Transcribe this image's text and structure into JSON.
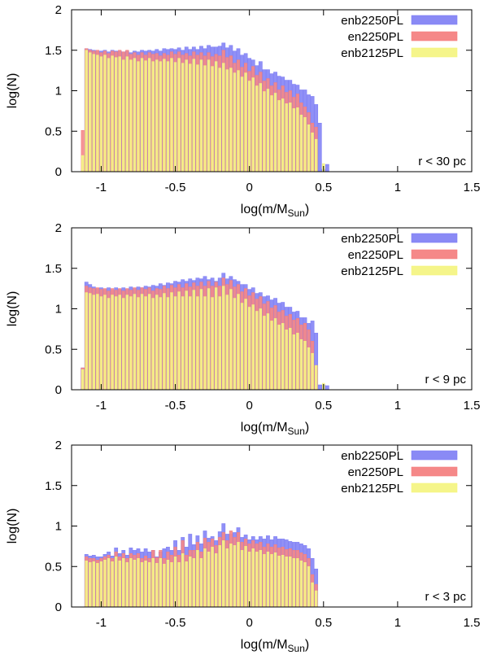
{
  "chart_data": [
    {
      "type": "bar",
      "annotation": "r < 30 pc",
      "xlabel": {
        "main": "log(m/M",
        "sub": "Sun",
        "close": ")"
      },
      "ylabel": "log(N)",
      "xlim": [
        -1.2,
        1.5
      ],
      "ylim": [
        0,
        2
      ],
      "xticks": [
        "-1",
        "-0.5",
        "0",
        "0.5",
        "1",
        "1.5"
      ],
      "yticks": [
        "0",
        "0.5",
        "1",
        "1.5",
        "2"
      ],
      "grid": false,
      "legend_position": "top-right",
      "x": [
        -1.125,
        -1.1,
        -1.075,
        -1.05,
        -1.025,
        -1.0,
        -0.975,
        -0.95,
        -0.925,
        -0.9,
        -0.875,
        -0.85,
        -0.825,
        -0.8,
        -0.775,
        -0.75,
        -0.725,
        -0.7,
        -0.675,
        -0.65,
        -0.625,
        -0.6,
        -0.575,
        -0.55,
        -0.525,
        -0.5,
        -0.475,
        -0.45,
        -0.425,
        -0.4,
        -0.375,
        -0.35,
        -0.325,
        -0.3,
        -0.275,
        -0.25,
        -0.225,
        -0.2,
        -0.175,
        -0.15,
        -0.125,
        -0.1,
        -0.075,
        -0.05,
        -0.025,
        0.0,
        0.025,
        0.05,
        0.075,
        0.1,
        0.125,
        0.15,
        0.175,
        0.2,
        0.225,
        0.25,
        0.275,
        0.3,
        0.325,
        0.35,
        0.375,
        0.4,
        0.425,
        0.45,
        0.475,
        0.5,
        0.525
      ],
      "series": [
        {
          "name": "enb2250PL",
          "color": "#8a8af5",
          "values": [
            0,
            1.52,
            1.51,
            1.5,
            1.49,
            1.49,
            1.5,
            1.48,
            1.5,
            1.49,
            1.49,
            1.48,
            1.49,
            1.47,
            1.49,
            1.48,
            1.5,
            1.49,
            1.5,
            1.49,
            1.51,
            1.49,
            1.52,
            1.51,
            1.52,
            1.51,
            1.53,
            1.5,
            1.54,
            1.51,
            1.54,
            1.51,
            1.55,
            1.52,
            1.56,
            1.54,
            1.54,
            1.55,
            1.59,
            1.53,
            1.56,
            1.49,
            1.52,
            1.44,
            1.46,
            1.4,
            1.38,
            1.31,
            1.36,
            1.26,
            1.26,
            1.21,
            1.23,
            1.18,
            1.17,
            1.13,
            1.13,
            1.08,
            1.07,
            1.01,
            1.01,
            0.95,
            0.93,
            0.83,
            0.6,
            0.03,
            0.09
          ]
        },
        {
          "name": "en2250PL",
          "color": "#f58888",
          "values": [
            0.51,
            1.52,
            1.5,
            1.49,
            1.5,
            1.47,
            1.49,
            1.46,
            1.49,
            1.48,
            1.5,
            1.48,
            1.5,
            1.45,
            1.47,
            1.44,
            1.47,
            1.44,
            1.47,
            1.45,
            1.46,
            1.43,
            1.46,
            1.44,
            1.48,
            1.45,
            1.48,
            1.44,
            1.46,
            1.43,
            1.48,
            1.44,
            1.47,
            1.43,
            1.47,
            1.42,
            1.45,
            1.43,
            1.5,
            1.41,
            1.43,
            1.34,
            1.38,
            1.29,
            1.34,
            1.24,
            1.3,
            1.19,
            1.23,
            1.12,
            1.15,
            1.06,
            1.1,
            1.01,
            1.06,
            0.98,
            1.0,
            0.92,
            0.96,
            0.85,
            0.8,
            0.73,
            0.6,
            0.55,
            0,
            0,
            0
          ]
        },
        {
          "name": "enb2125PL",
          "color": "#f5f58a",
          "values": [
            0.2,
            1.5,
            1.47,
            1.45,
            1.44,
            1.42,
            1.44,
            1.4,
            1.43,
            1.41,
            1.42,
            1.38,
            1.42,
            1.38,
            1.4,
            1.36,
            1.4,
            1.37,
            1.4,
            1.36,
            1.38,
            1.36,
            1.39,
            1.36,
            1.4,
            1.35,
            1.4,
            1.34,
            1.38,
            1.33,
            1.39,
            1.32,
            1.38,
            1.31,
            1.38,
            1.3,
            1.36,
            1.28,
            1.34,
            1.26,
            1.28,
            1.22,
            1.25,
            1.17,
            1.22,
            1.12,
            1.16,
            1.06,
            1.09,
            0.99,
            1.02,
            0.94,
            0.97,
            0.88,
            0.9,
            0.84,
            0.85,
            0.78,
            0.79,
            0.7,
            0.67,
            0.58,
            0.48,
            0.4,
            0,
            0.1,
            0
          ]
        }
      ]
    },
    {
      "type": "bar",
      "annotation": "r < 9 pc",
      "xlabel": {
        "main": "log(m/M",
        "sub": "Sun",
        "close": ")"
      },
      "ylabel": "log(N)",
      "xlim": [
        -1.2,
        1.5
      ],
      "ylim": [
        0,
        2
      ],
      "xticks": [
        "-1",
        "-0.5",
        "0",
        "0.5",
        "1",
        "1.5"
      ],
      "yticks": [
        "0",
        "0.5",
        "1",
        "1.5",
        "2"
      ],
      "grid": false,
      "legend_position": "top-right",
      "x": [
        -1.125,
        -1.1,
        -1.075,
        -1.05,
        -1.025,
        -1.0,
        -0.975,
        -0.95,
        -0.925,
        -0.9,
        -0.875,
        -0.85,
        -0.825,
        -0.8,
        -0.775,
        -0.75,
        -0.725,
        -0.7,
        -0.675,
        -0.65,
        -0.625,
        -0.6,
        -0.575,
        -0.55,
        -0.525,
        -0.5,
        -0.475,
        -0.45,
        -0.425,
        -0.4,
        -0.375,
        -0.35,
        -0.325,
        -0.3,
        -0.275,
        -0.25,
        -0.225,
        -0.2,
        -0.175,
        -0.15,
        -0.125,
        -0.1,
        -0.075,
        -0.05,
        -0.025,
        0.0,
        0.025,
        0.05,
        0.075,
        0.1,
        0.125,
        0.15,
        0.175,
        0.2,
        0.225,
        0.25,
        0.275,
        0.3,
        0.325,
        0.35,
        0.375,
        0.4,
        0.425,
        0.45,
        0.475,
        0.5,
        0.525
      ],
      "series": [
        {
          "name": "enb2250PL",
          "color": "#8a8af5",
          "values": [
            0.27,
            1.33,
            1.3,
            1.27,
            1.25,
            1.26,
            1.24,
            1.26,
            1.23,
            1.26,
            1.24,
            1.26,
            1.24,
            1.27,
            1.25,
            1.27,
            1.26,
            1.28,
            1.27,
            1.29,
            1.28,
            1.31,
            1.29,
            1.32,
            1.31,
            1.34,
            1.33,
            1.36,
            1.34,
            1.37,
            1.35,
            1.38,
            1.37,
            1.4,
            1.36,
            1.38,
            1.34,
            1.38,
            1.44,
            1.37,
            1.4,
            1.36,
            1.34,
            1.3,
            1.3,
            1.24,
            1.26,
            1.19,
            1.2,
            1.15,
            1.16,
            1.11,
            1.13,
            1.07,
            1.08,
            1.02,
            1.02,
            0.96,
            0.97,
            0.89,
            0.89,
            0.82,
            0.85,
            0.7,
            0.06,
            0.06,
            0.05
          ]
        },
        {
          "name": "en2250PL",
          "color": "#f58888",
          "values": [
            0.27,
            1.28,
            1.26,
            1.25,
            1.26,
            1.24,
            1.25,
            1.22,
            1.25,
            1.23,
            1.25,
            1.22,
            1.25,
            1.23,
            1.26,
            1.23,
            1.26,
            1.24,
            1.26,
            1.22,
            1.25,
            1.24,
            1.28,
            1.25,
            1.29,
            1.26,
            1.3,
            1.26,
            1.31,
            1.27,
            1.32,
            1.28,
            1.33,
            1.28,
            1.34,
            1.28,
            1.33,
            1.28,
            1.38,
            1.3,
            1.35,
            1.27,
            1.3,
            1.21,
            1.25,
            1.16,
            1.2,
            1.12,
            1.15,
            1.06,
            1.09,
            1.01,
            1.04,
            0.96,
            0.98,
            0.91,
            0.93,
            0.86,
            0.88,
            0.8,
            0.82,
            0.74,
            0.6,
            0.3,
            0,
            0,
            0
          ]
        },
        {
          "name": "enb2125PL",
          "color": "#f5f58a",
          "values": [
            0.25,
            1.2,
            1.19,
            1.17,
            1.18,
            1.15,
            1.17,
            1.13,
            1.17,
            1.15,
            1.17,
            1.13,
            1.17,
            1.15,
            1.18,
            1.14,
            1.18,
            1.15,
            1.18,
            1.13,
            1.17,
            1.14,
            1.19,
            1.14,
            1.2,
            1.15,
            1.21,
            1.15,
            1.22,
            1.15,
            1.23,
            1.15,
            1.24,
            1.15,
            1.25,
            1.14,
            1.26,
            1.15,
            1.28,
            1.17,
            1.24,
            1.13,
            1.18,
            1.07,
            1.12,
            1.02,
            1.05,
            0.97,
            1.0,
            0.91,
            0.94,
            0.85,
            0.88,
            0.8,
            0.82,
            0.74,
            0.76,
            0.68,
            0.7,
            0.62,
            0.6,
            0.52,
            0.45,
            0.3,
            0,
            0.08,
            0
          ]
        }
      ]
    },
    {
      "type": "bar",
      "annotation": "r < 3 pc",
      "xlabel": {
        "main": "log(m/M",
        "sub": "Sun",
        "close": ")"
      },
      "ylabel": "log(N)",
      "xlim": [
        -1.2,
        1.5
      ],
      "ylim": [
        0,
        2
      ],
      "xticks": [
        "-1",
        "-0.5",
        "0",
        "0.5",
        "1",
        "1.5"
      ],
      "yticks": [
        "0",
        "0.5",
        "1",
        "1.5",
        "2"
      ],
      "grid": false,
      "legend_position": "top-right",
      "x": [
        -1.125,
        -1.1,
        -1.075,
        -1.05,
        -1.025,
        -1.0,
        -0.975,
        -0.95,
        -0.925,
        -0.9,
        -0.875,
        -0.85,
        -0.825,
        -0.8,
        -0.775,
        -0.75,
        -0.725,
        -0.7,
        -0.675,
        -0.65,
        -0.625,
        -0.6,
        -0.575,
        -0.55,
        -0.525,
        -0.5,
        -0.475,
        -0.45,
        -0.425,
        -0.4,
        -0.375,
        -0.35,
        -0.325,
        -0.3,
        -0.275,
        -0.25,
        -0.225,
        -0.2,
        -0.175,
        -0.15,
        -0.125,
        -0.1,
        -0.075,
        -0.05,
        -0.025,
        0.0,
        0.025,
        0.05,
        0.075,
        0.1,
        0.125,
        0.15,
        0.175,
        0.2,
        0.225,
        0.25,
        0.275,
        0.3,
        0.325,
        0.35,
        0.375,
        0.4,
        0.425,
        0.45,
        0.475,
        0.5,
        0.525
      ],
      "series": [
        {
          "name": "enb2250PL",
          "color": "#8a8af5",
          "values": [
            0,
            0.65,
            0.63,
            0.64,
            0.62,
            0.62,
            0.65,
            0.68,
            0.63,
            0.73,
            0.66,
            0.7,
            0.64,
            0.73,
            0.7,
            0.72,
            0.68,
            0.72,
            0.68,
            0.7,
            0.62,
            0.68,
            0.72,
            0.74,
            0.7,
            0.82,
            0.7,
            0.86,
            0.74,
            0.9,
            0.77,
            0.88,
            0.78,
            0.94,
            0.85,
            0.87,
            0.82,
            0.93,
            1.03,
            0.9,
            0.9,
            0.92,
            0.98,
            0.86,
            0.89,
            0.83,
            0.87,
            0.83,
            0.87,
            0.84,
            0.88,
            0.83,
            0.87,
            0.84,
            0.84,
            0.83,
            0.81,
            0.8,
            0.8,
            0.78,
            0.76,
            0.72,
            0.6,
            0.47,
            0,
            0,
            0
          ]
        },
        {
          "name": "en2250PL",
          "color": "#f58888",
          "values": [
            0,
            0.62,
            0.6,
            0.6,
            0.58,
            0.6,
            0.62,
            0.64,
            0.6,
            0.68,
            0.62,
            0.66,
            0.6,
            0.66,
            0.64,
            0.66,
            0.6,
            0.63,
            0.6,
            0.7,
            0.61,
            0.7,
            0.6,
            0.68,
            0.64,
            0.74,
            0.64,
            0.82,
            0.64,
            0.7,
            0.7,
            0.8,
            0.68,
            0.85,
            0.8,
            0.84,
            0.76,
            0.86,
            0.92,
            0.82,
            0.94,
            0.86,
            0.92,
            0.8,
            0.84,
            0.78,
            0.82,
            0.78,
            0.8,
            0.74,
            0.78,
            0.74,
            0.77,
            0.73,
            0.74,
            0.71,
            0.72,
            0.7,
            0.7,
            0.67,
            0.65,
            0.6,
            0.4,
            0.28,
            0,
            0,
            0
          ]
        },
        {
          "name": "enb2125PL",
          "color": "#f5f58a",
          "values": [
            0,
            0.57,
            0.55,
            0.56,
            0.54,
            0.56,
            0.58,
            0.6,
            0.56,
            0.62,
            0.57,
            0.6,
            0.55,
            0.6,
            0.58,
            0.6,
            0.55,
            0.57,
            0.55,
            0.6,
            0.54,
            0.6,
            0.53,
            0.58,
            0.55,
            0.62,
            0.55,
            0.66,
            0.56,
            0.62,
            0.6,
            0.7,
            0.6,
            0.72,
            0.68,
            0.74,
            0.66,
            0.76,
            0.82,
            0.72,
            0.78,
            0.76,
            0.8,
            0.7,
            0.75,
            0.68,
            0.72,
            0.68,
            0.7,
            0.65,
            0.68,
            0.65,
            0.67,
            0.63,
            0.64,
            0.62,
            0.62,
            0.6,
            0.6,
            0.57,
            0.55,
            0.5,
            0.3,
            0.2,
            0,
            0,
            0
          ]
        }
      ]
    }
  ]
}
